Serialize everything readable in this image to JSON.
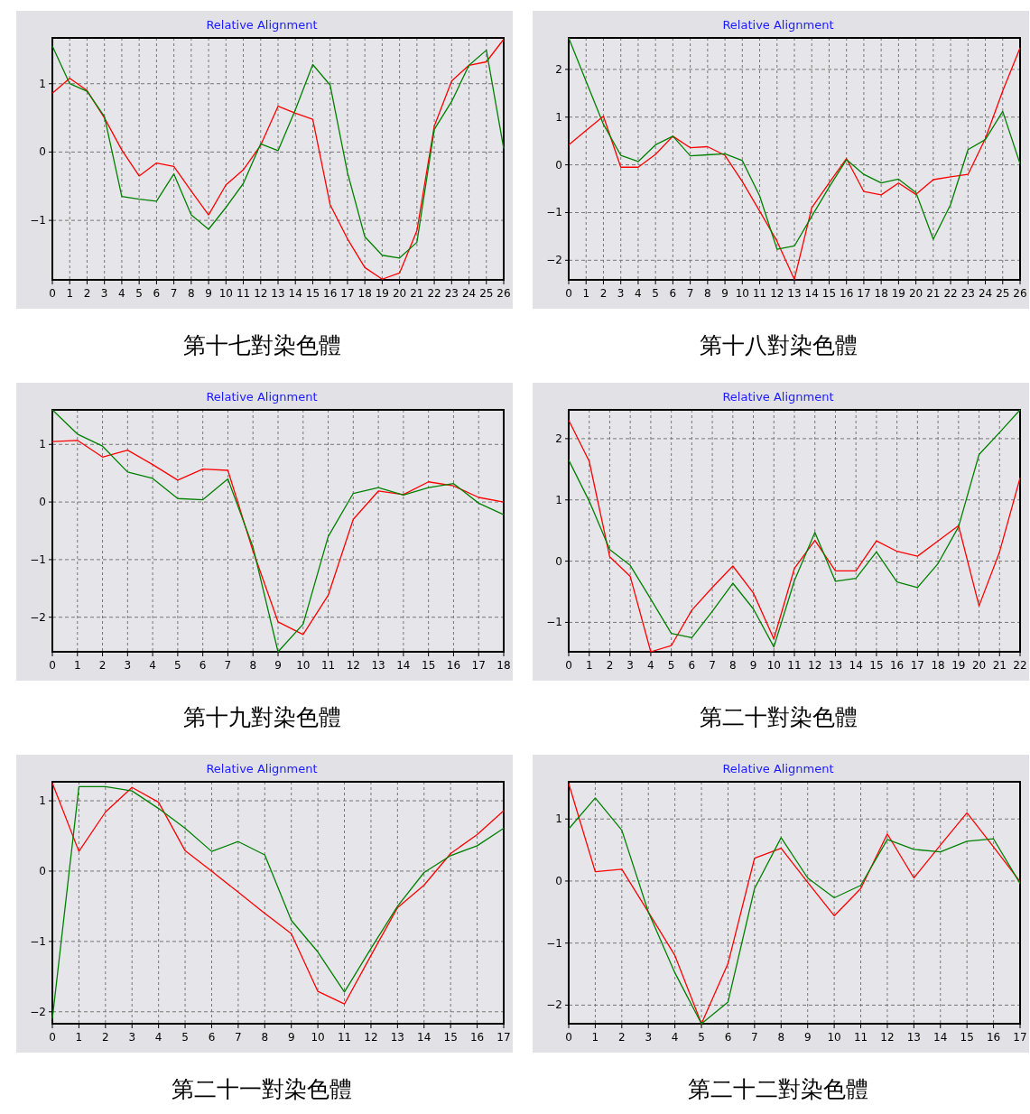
{
  "chart_data": [
    {
      "type": "line",
      "title": "Relative Alignment",
      "annotations": [
        "第十七對染色體"
      ],
      "grid": true,
      "xlim": [
        0,
        26
      ],
      "xticks": [
        0,
        1,
        2,
        3,
        4,
        5,
        6,
        7,
        8,
        9,
        10,
        11,
        12,
        13,
        14,
        15,
        16,
        17,
        18,
        19,
        20,
        21,
        22,
        23,
        24,
        25,
        26
      ],
      "ylim": [
        -1.87,
        1.67
      ],
      "yticks": [
        -1,
        0,
        1
      ],
      "x": [
        0,
        1,
        2,
        3,
        4,
        5,
        6,
        7,
        8,
        9,
        10,
        11,
        12,
        13,
        14,
        15,
        16,
        17,
        18,
        19,
        20,
        21,
        22,
        23,
        24,
        25,
        26
      ],
      "series": [
        {
          "color": "#ff0000",
          "values": [
            0.86,
            1.08,
            0.9,
            0.5,
            0.03,
            -0.35,
            -0.16,
            -0.21,
            -0.57,
            -0.92,
            -0.48,
            -0.26,
            0.1,
            0.67,
            0.57,
            0.48,
            -0.77,
            -1.27,
            -1.69,
            -1.86,
            -1.77,
            -1.15,
            0.38,
            1.04,
            1.27,
            1.32,
            1.65
          ]
        },
        {
          "color": "#008000",
          "values": [
            1.55,
            1.0,
            0.89,
            0.52,
            -0.65,
            -0.69,
            -0.72,
            -0.32,
            -0.92,
            -1.13,
            -0.81,
            -0.46,
            0.12,
            0.02,
            0.62,
            1.28,
            0.98,
            -0.3,
            -1.24,
            -1.51,
            -1.55,
            -1.32,
            0.33,
            0.74,
            1.27,
            1.49,
            0.05
          ]
        }
      ]
    },
    {
      "type": "line",
      "title": "Relative Alignment",
      "annotations": [
        "第十八對染色體"
      ],
      "grid": true,
      "xlim": [
        0,
        26
      ],
      "xticks": [
        0,
        1,
        2,
        3,
        4,
        5,
        6,
        7,
        8,
        9,
        10,
        11,
        12,
        13,
        14,
        15,
        16,
        17,
        18,
        19,
        20,
        21,
        22,
        23,
        24,
        25,
        26
      ],
      "ylim": [
        -2.41,
        2.66
      ],
      "yticks": [
        -2,
        -1,
        0,
        1,
        2
      ],
      "x": [
        0,
        1,
        2,
        3,
        4,
        5,
        6,
        7,
        8,
        9,
        10,
        11,
        12,
        13,
        14,
        15,
        16,
        17,
        18,
        19,
        20,
        21,
        22,
        23,
        24,
        25,
        26
      ],
      "series": [
        {
          "color": "#ff0000",
          "values": [
            0.42,
            0.72,
            1.02,
            -0.05,
            -0.05,
            0.22,
            0.6,
            0.36,
            0.38,
            0.2,
            -0.35,
            -0.97,
            -1.6,
            -2.4,
            -0.9,
            -0.38,
            0.13,
            -0.56,
            -0.63,
            -0.38,
            -0.62,
            -0.31,
            -0.25,
            -0.2,
            0.55,
            1.55,
            2.45
          ]
        },
        {
          "color": "#008000",
          "values": [
            2.66,
            1.75,
            0.85,
            0.2,
            0.07,
            0.42,
            0.6,
            0.19,
            0.21,
            0.23,
            0.09,
            -0.65,
            -1.77,
            -1.7,
            -1.08,
            -0.47,
            0.11,
            -0.2,
            -0.38,
            -0.3,
            -0.58,
            -1.56,
            -0.83,
            0.32,
            0.53,
            1.12,
            0.02
          ]
        }
      ]
    },
    {
      "type": "line",
      "title": "Relative Alignment",
      "annotations": [
        "第十九對染色體"
      ],
      "grid": true,
      "xlim": [
        0,
        18
      ],
      "xticks": [
        0,
        1,
        2,
        3,
        4,
        5,
        6,
        7,
        8,
        9,
        10,
        11,
        12,
        13,
        14,
        15,
        16,
        17,
        18
      ],
      "ylim": [
        -2.6,
        1.6
      ],
      "yticks": [
        -2,
        -1,
        0,
        1
      ],
      "x": [
        0,
        1,
        2,
        3,
        4,
        5,
        6,
        7,
        8,
        9,
        10,
        11,
        12,
        13,
        14,
        15,
        16,
        17,
        18
      ],
      "series": [
        {
          "color": "#ff0000",
          "values": [
            1.05,
            1.07,
            0.78,
            0.9,
            0.65,
            0.38,
            0.57,
            0.55,
            -0.85,
            -2.08,
            -2.3,
            -1.62,
            -0.3,
            0.19,
            0.13,
            0.35,
            0.28,
            0.08,
            0.0
          ]
        },
        {
          "color": "#008000",
          "values": [
            1.6,
            1.18,
            0.97,
            0.52,
            0.41,
            0.06,
            0.04,
            0.4,
            -0.78,
            -2.6,
            -2.12,
            -0.6,
            0.15,
            0.25,
            0.12,
            0.25,
            0.32,
            -0.02,
            -0.22
          ]
        }
      ]
    },
    {
      "type": "line",
      "title": "Relative Alignment",
      "annotations": [
        "第二十對染色體"
      ],
      "grid": true,
      "xlim": [
        0,
        22
      ],
      "xticks": [
        0,
        1,
        2,
        3,
        4,
        5,
        6,
        7,
        8,
        9,
        10,
        11,
        12,
        13,
        14,
        15,
        16,
        17,
        18,
        19,
        20,
        21,
        22
      ],
      "ylim": [
        -1.48,
        2.47
      ],
      "yticks": [
        -1,
        0,
        1,
        2
      ],
      "x": [
        0,
        1,
        2,
        3,
        4,
        5,
        6,
        7,
        8,
        9,
        10,
        11,
        12,
        13,
        14,
        15,
        16,
        17,
        18,
        19,
        20,
        21,
        22
      ],
      "series": [
        {
          "color": "#ff0000",
          "values": [
            2.3,
            1.63,
            0.07,
            -0.25,
            -1.48,
            -1.38,
            -0.8,
            -0.43,
            -0.08,
            -0.52,
            -1.27,
            -0.12,
            0.34,
            -0.16,
            -0.16,
            0.33,
            0.16,
            0.08,
            0.33,
            0.58,
            -0.73,
            0.15,
            1.36
          ]
        },
        {
          "color": "#008000",
          "values": [
            1.65,
            0.98,
            0.19,
            -0.07,
            -0.62,
            -1.18,
            -1.25,
            -0.82,
            -0.36,
            -0.78,
            -1.4,
            -0.32,
            0.47,
            -0.33,
            -0.28,
            0.15,
            -0.34,
            -0.43,
            -0.04,
            0.56,
            1.74,
            2.1,
            2.47
          ]
        }
      ]
    },
    {
      "type": "line",
      "title": "Relative Alignment",
      "annotations": [
        "第二十一對染色體"
      ],
      "grid": true,
      "xlim": [
        0,
        17
      ],
      "xticks": [
        0,
        1,
        2,
        3,
        4,
        5,
        6,
        7,
        8,
        9,
        10,
        11,
        12,
        13,
        14,
        15,
        16,
        17
      ],
      "ylim": [
        -2.17,
        1.27
      ],
      "yticks": [
        -2,
        -1,
        0,
        1
      ],
      "x": [
        0,
        1,
        2,
        3,
        4,
        5,
        6,
        7,
        8,
        9,
        10,
        11,
        12,
        13,
        14,
        15,
        16,
        17
      ],
      "series": [
        {
          "color": "#ff0000",
          "values": [
            1.25,
            0.28,
            0.84,
            1.19,
            0.98,
            0.29,
            0.0,
            -0.3,
            -0.6,
            -0.89,
            -1.71,
            -1.89,
            -1.2,
            -0.52,
            -0.2,
            0.25,
            0.52,
            0.86
          ]
        },
        {
          "color": "#008000",
          "values": [
            -2.1,
            1.2,
            1.2,
            1.14,
            0.89,
            0.61,
            0.28,
            0.42,
            0.23,
            -0.7,
            -1.15,
            -1.72,
            -1.1,
            -0.5,
            -0.02,
            0.22,
            0.36,
            0.61
          ]
        }
      ]
    },
    {
      "type": "line",
      "title": "Relative Alignment",
      "annotations": [
        "第二十二對染色體"
      ],
      "grid": true,
      "xlim": [
        0,
        17
      ],
      "xticks": [
        0,
        1,
        2,
        3,
        4,
        5,
        6,
        7,
        8,
        9,
        10,
        11,
        12,
        13,
        14,
        15,
        16,
        17
      ],
      "ylim": [
        -2.3,
        1.6
      ],
      "yticks": [
        -2,
        -1,
        0,
        1
      ],
      "x": [
        0,
        1,
        2,
        3,
        4,
        5,
        6,
        7,
        8,
        9,
        10,
        11,
        12,
        13,
        14,
        15,
        16,
        17
      ],
      "series": [
        {
          "color": "#ff0000",
          "values": [
            1.57,
            0.15,
            0.19,
            -0.5,
            -1.2,
            -2.3,
            -1.33,
            0.37,
            0.53,
            -0.02,
            -0.56,
            -0.12,
            0.76,
            0.05,
            0.58,
            1.1,
            0.55,
            -0.01
          ]
        },
        {
          "color": "#008000",
          "values": [
            0.84,
            1.34,
            0.82,
            -0.5,
            -1.48,
            -2.3,
            -1.95,
            -0.12,
            0.7,
            0.05,
            -0.27,
            -0.07,
            0.67,
            0.51,
            0.47,
            0.64,
            0.68,
            -0.04
          ]
        }
      ]
    }
  ]
}
